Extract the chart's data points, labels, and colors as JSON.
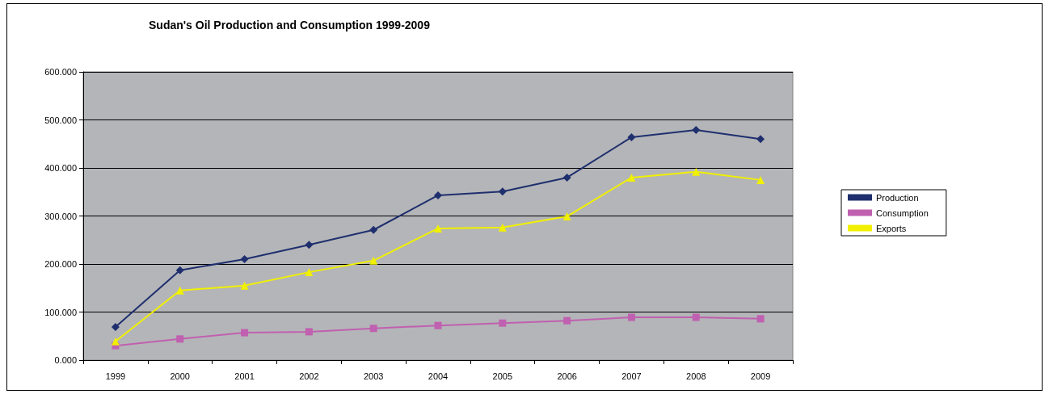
{
  "chart_data": {
    "type": "line",
    "title": "Sudan's Oil Production and Consumption 1999-2009",
    "categories": [
      "1999",
      "2000",
      "2001",
      "2002",
      "2003",
      "2004",
      "2005",
      "2006",
      "2007",
      "2008",
      "2009"
    ],
    "series": [
      {
        "name": "Production",
        "color": "#1f2f6e",
        "marker": "diamond",
        "values": [
          69,
          187,
          210,
          240,
          271,
          343,
          351,
          380,
          464,
          479,
          460
        ]
      },
      {
        "name": "Consumption",
        "color": "#c060b0",
        "marker": "square",
        "values": [
          30,
          44,
          57,
          59,
          66,
          72,
          77,
          82,
          89,
          89,
          86
        ]
      },
      {
        "name": "Exports",
        "color": "#f0f000",
        "marker": "triangle",
        "values": [
          39,
          145,
          155,
          183,
          207,
          274,
          276,
          299,
          380,
          392,
          375
        ]
      }
    ],
    "ylim": [
      0,
      600
    ],
    "yticks": [
      {
        "value": 0,
        "label": "0.000"
      },
      {
        "value": 100,
        "label": "100.000"
      },
      {
        "value": 200,
        "label": "200.000"
      },
      {
        "value": 300,
        "label": "300.000"
      },
      {
        "value": 400,
        "label": "400.000"
      },
      {
        "value": 500,
        "label": "500.000"
      },
      {
        "value": 600,
        "label": "600.000"
      }
    ],
    "grid": "y",
    "legend": "right",
    "line_style": "solid"
  }
}
